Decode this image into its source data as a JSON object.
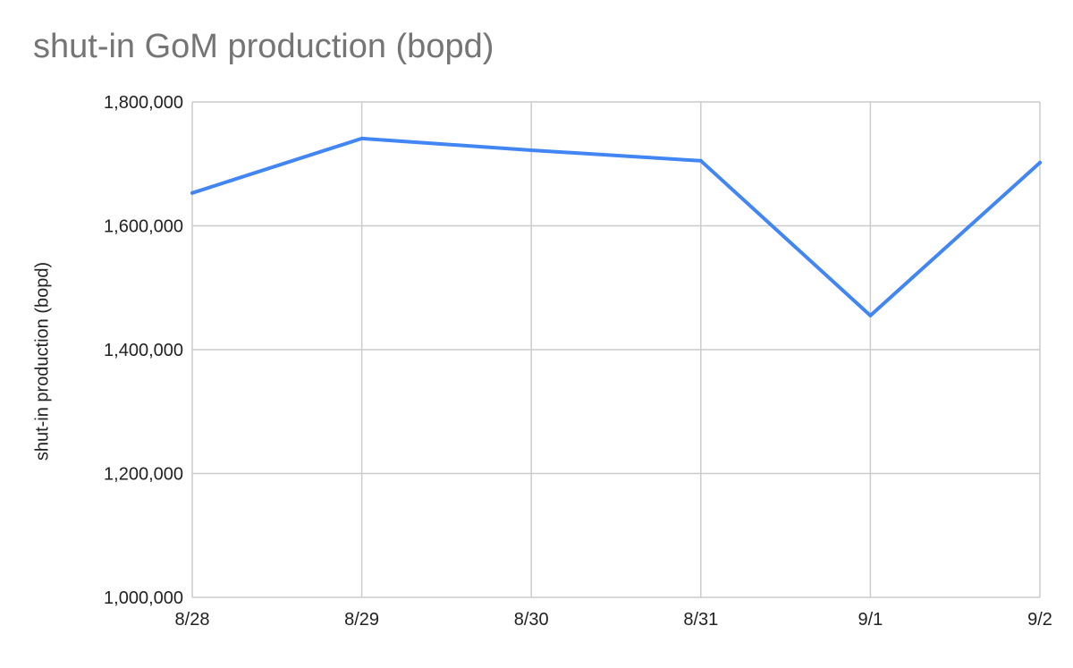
{
  "chart_data": {
    "type": "line",
    "title": "shut-in GoM production (bopd)",
    "xlabel": "",
    "ylabel": "shut-in production (bopd)",
    "categories": [
      "8/28",
      "8/29",
      "8/30",
      "8/31",
      "9/1",
      "9/2"
    ],
    "series": [
      {
        "values": [
          1653000,
          1741000,
          1722000,
          1705000,
          1455000,
          1702000
        ]
      }
    ],
    "ylim": [
      1000000,
      1800000
    ],
    "yticks": [
      1000000,
      1200000,
      1400000,
      1600000,
      1800000
    ],
    "ytick_labels": [
      "1,000,000",
      "1,200,000",
      "1,400,000",
      "1,600,000",
      "1,800,000"
    ],
    "grid": true,
    "legend": "none",
    "colors": {
      "line": "#4285f4",
      "grid": "#cccccc",
      "title": "#757575",
      "text": "#222222"
    }
  }
}
